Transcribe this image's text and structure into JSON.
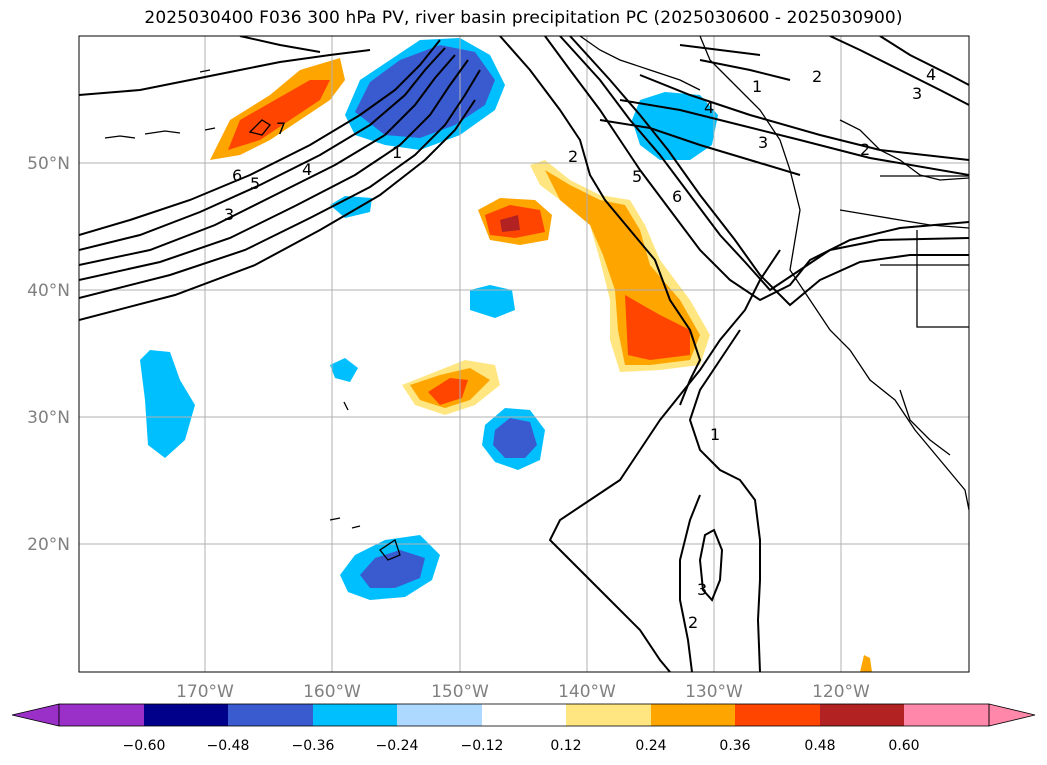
{
  "title": "2025030400 F036 300 hPa PV, river basin precipitation PC (2025030600 - 2025030900)",
  "lat_labels": [
    "50°N",
    "40°N",
    "30°N",
    "20°N"
  ],
  "lon_labels": [
    "170°W",
    "160°W",
    "150°W",
    "140°W",
    "130°W",
    "120°W"
  ],
  "colorbar": {
    "ticks": [
      "−0.60",
      "−0.48",
      "−0.36",
      "−0.24",
      "−0.12",
      "0.12",
      "0.24",
      "0.36",
      "0.48",
      "0.60"
    ],
    "colors": [
      "#9b30c8",
      "#00008b",
      "#3a5bd0",
      "#00bfff",
      "#add8ff",
      "#ffffff",
      "#ffe680",
      "#ffa500",
      "#ff4500",
      "#b22222",
      "#ff88aa"
    ]
  },
  "contour_labels": [
    "1",
    "2",
    "3",
    "4",
    "5",
    "6",
    "7"
  ],
  "pv_contour_labels": [
    {
      "text": "7"
    },
    {
      "text": "6"
    },
    {
      "text": "5"
    },
    {
      "text": "4"
    },
    {
      "text": "3"
    },
    {
      "text": "1"
    },
    {
      "text": "2"
    },
    {
      "text": "5"
    },
    {
      "text": "6"
    },
    {
      "text": "4"
    },
    {
      "text": "3"
    },
    {
      "text": "2"
    },
    {
      "text": "1"
    },
    {
      "text": "2"
    },
    {
      "text": "4"
    },
    {
      "text": "3"
    },
    {
      "text": "1"
    },
    {
      "text": "3"
    },
    {
      "text": "2"
    }
  ]
}
